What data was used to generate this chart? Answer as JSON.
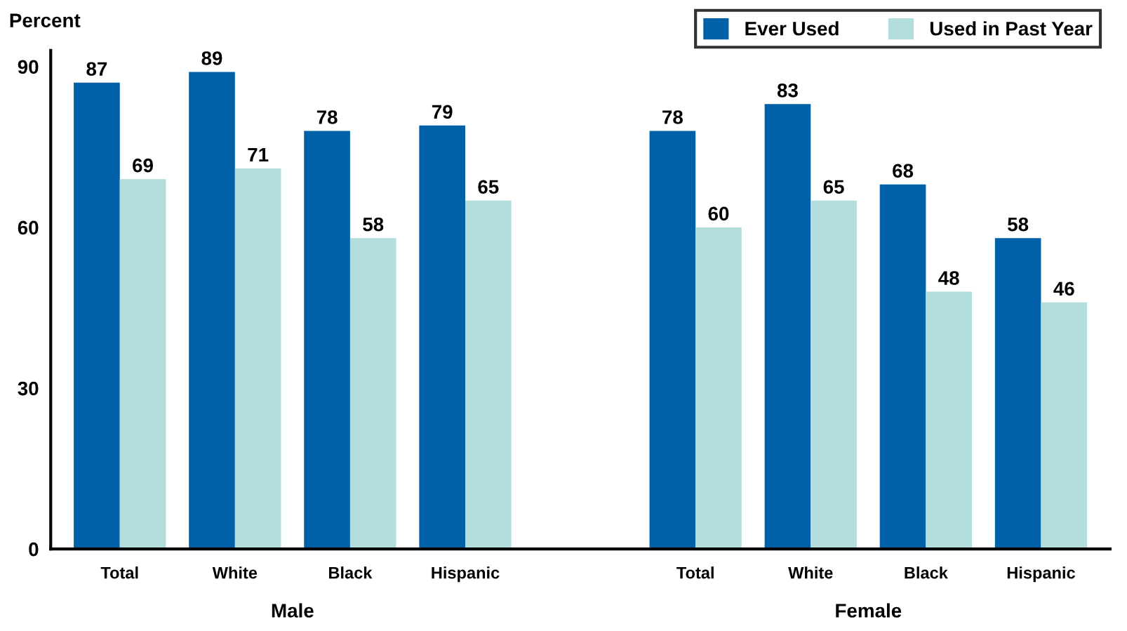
{
  "chart_data": {
    "type": "bar",
    "ylabel": "Percent",
    "categories": [
      "Total",
      "White",
      "Black",
      "Hispanic",
      null,
      "Total",
      "White",
      "Black",
      "Hispanic"
    ],
    "series": [
      {
        "name": "Ever Used",
        "color": "#0060a8",
        "values": [
          87,
          89,
          78,
          79,
          null,
          78,
          83,
          68,
          58
        ]
      },
      {
        "name": "Used in Past Year",
        "color": "#b3dedd",
        "values": [
          69,
          71,
          58,
          65,
          null,
          60,
          65,
          48,
          46
        ]
      }
    ],
    "ylim": [
      0,
      93
    ],
    "yticks": [
      0,
      30,
      60,
      90
    ],
    "data_labels": true,
    "legend": "top right",
    "grid": false,
    "annotations": [
      "Male",
      "Female"
    ]
  }
}
